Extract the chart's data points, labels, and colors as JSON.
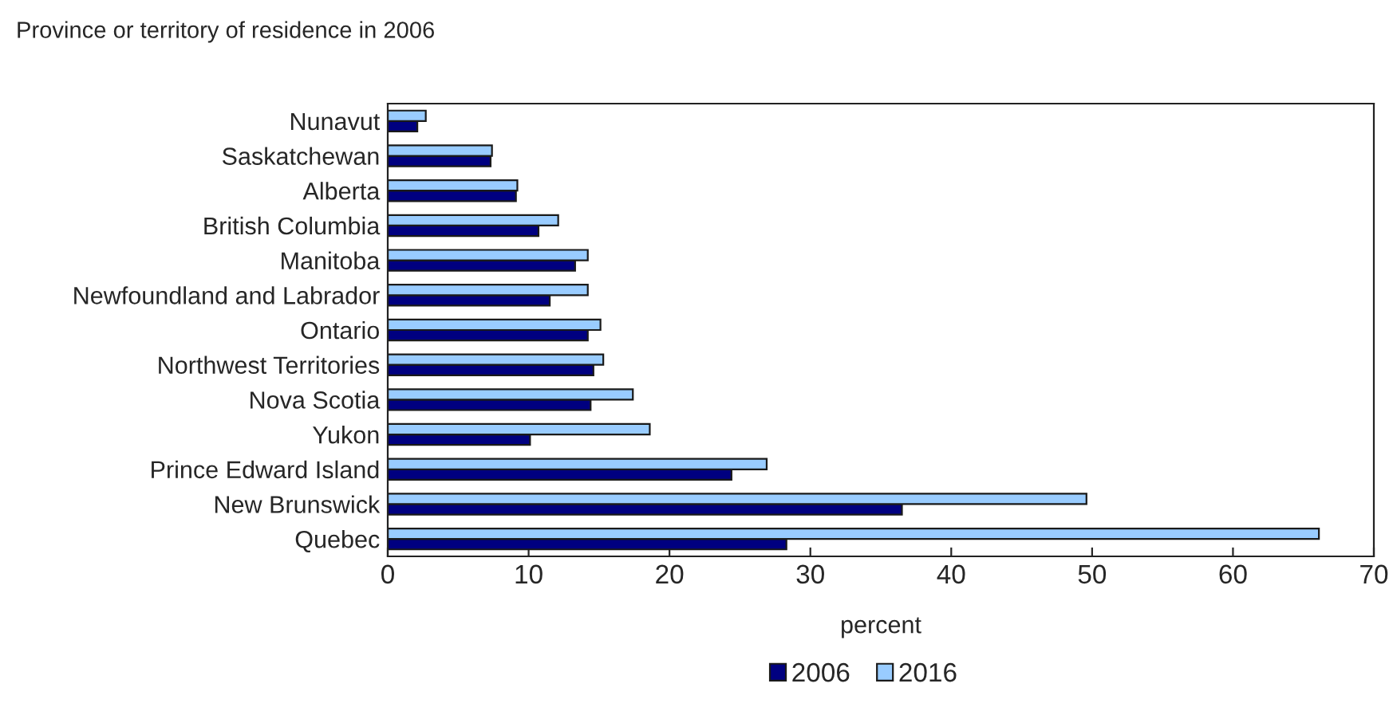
{
  "chart_data": {
    "type": "bar",
    "orientation": "horizontal",
    "title": "Province or territory of residence in 2006",
    "xlabel": "percent",
    "categories": [
      "Nunavut",
      "Saskatchewan",
      "Alberta",
      "British Columbia",
      "Manitoba",
      "Newfoundland and Labrador",
      "Ontario",
      "Northwest Territories",
      "Nova Scotia",
      "Yukon",
      "Prince Edward Island",
      "New Brunswick",
      "Quebec"
    ],
    "series": [
      {
        "name": "2006",
        "color": "#000080",
        "values": [
          2.1,
          7.3,
          9.1,
          10.7,
          13.3,
          11.5,
          14.2,
          14.6,
          14.4,
          10.1,
          24.4,
          36.5,
          28.3
        ]
      },
      {
        "name": "2016",
        "color": "#99ccff",
        "values": [
          2.7,
          7.4,
          9.2,
          12.1,
          14.2,
          14.2,
          15.1,
          15.3,
          17.4,
          18.6,
          26.9,
          49.6,
          66.1
        ]
      }
    ],
    "xlim": [
      0,
      70
    ],
    "xticks": [
      0,
      10,
      20,
      30,
      40,
      50,
      60,
      70
    ],
    "grid": false,
    "legend": "bottom"
  }
}
